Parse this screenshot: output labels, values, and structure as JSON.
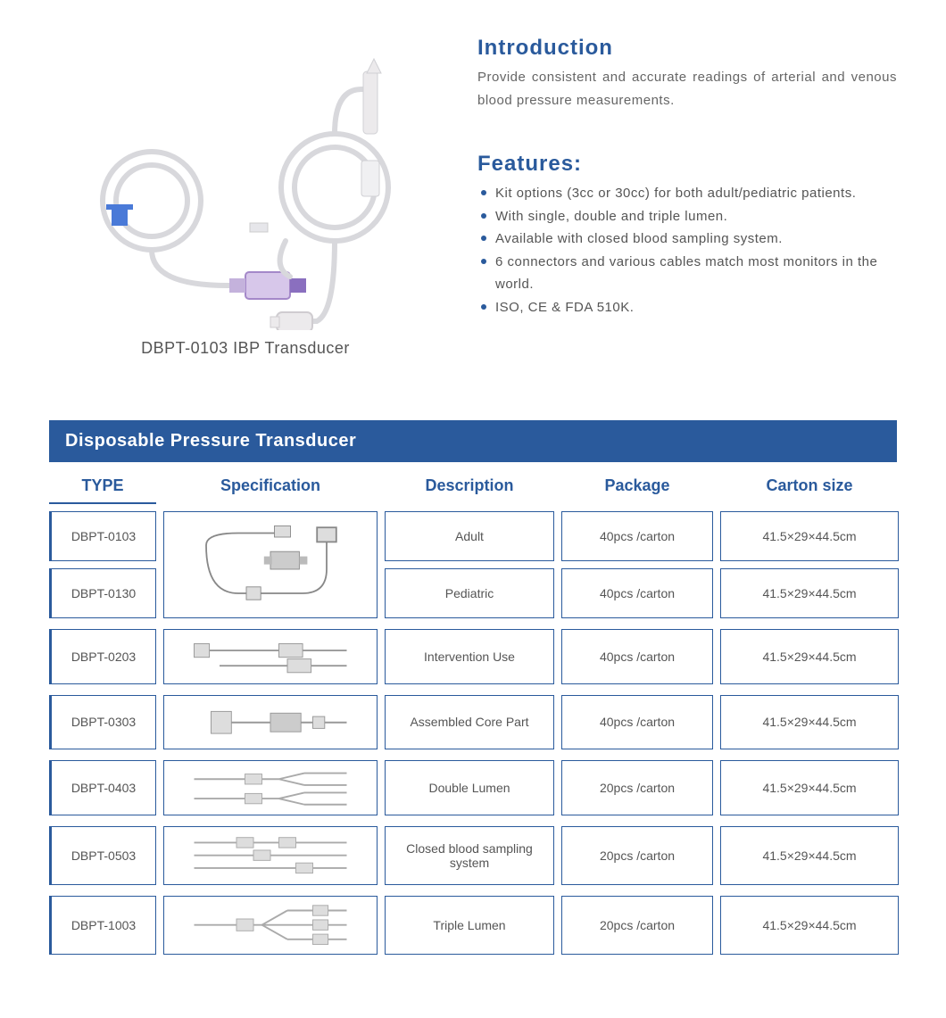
{
  "colors": {
    "blue": "#2a5a9c",
    "blue_text": "#2a5a9c",
    "header_bg": "#2a5a9c",
    "cell_border": "#2a5a9c"
  },
  "product": {
    "caption": "DBPT-0103 IBP Transducer"
  },
  "intro": {
    "title": "Introduction",
    "text": "Provide consistent and accurate readings of arterial and venous blood pressure measurements."
  },
  "features": {
    "title": "Features:",
    "items": [
      "Kit options (3cc or 30cc) for both adult/pediatric patients.",
      "With single, double and triple lumen.",
      "Available with closed blood sampling system.",
      "6 connectors and various cables match most monitors in the world.",
      "ISO, CE & FDA 510K."
    ]
  },
  "table": {
    "title": "Disposable Pressure Transducer",
    "headers": {
      "type": "TYPE",
      "spec": "Specification",
      "desc": "Description",
      "pkg": "Package",
      "carton": "Carton  size"
    },
    "merged": {
      "types": [
        "DBPT-0103",
        "DBPT-0130"
      ],
      "rows": [
        {
          "desc": "Adult",
          "pkg": "40pcs /carton",
          "carton": "41.5×29×44.5cm"
        },
        {
          "desc": "Pediatric",
          "pkg": "40pcs /carton",
          "carton": "41.5×29×44.5cm"
        }
      ]
    },
    "rows": [
      {
        "type": "DBPT-0203",
        "desc": "Intervention Use",
        "pkg": "40pcs /carton",
        "carton": "41.5×29×44.5cm"
      },
      {
        "type": "DBPT-0303",
        "desc": "Assembled Core Part",
        "pkg": "40pcs /carton",
        "carton": "41.5×29×44.5cm"
      },
      {
        "type": "DBPT-0403",
        "desc": "Double Lumen",
        "pkg": "20pcs /carton",
        "carton": "41.5×29×44.5cm"
      },
      {
        "type": "DBPT-0503",
        "desc": "Closed blood sampling system",
        "pkg": "20pcs /carton",
        "carton": "41.5×29×44.5cm"
      },
      {
        "type": "DBPT-1003",
        "desc": "Triple Lumen",
        "pkg": "20pcs /carton",
        "carton": "41.5×29×44.5cm"
      }
    ]
  }
}
